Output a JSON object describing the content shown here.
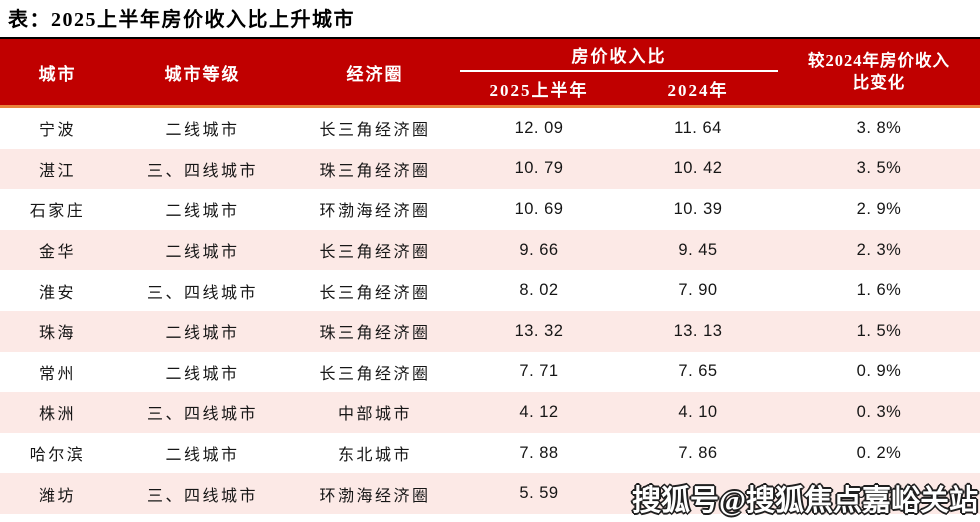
{
  "title": "表：2025上半年房价收入比上升城市",
  "colors": {
    "header_bg": "#C00000",
    "top_rule": "#000000",
    "accent_line": "#E8823B",
    "row_alt_bg": "#FCE9E6",
    "header_text": "#FFFFFF"
  },
  "watermark": "搜狐号@搜狐焦点嘉峪关站",
  "table": {
    "columns": {
      "city": "城市",
      "tier": "城市等级",
      "zone": "经济圈",
      "ratio_group": "房价收入比",
      "h1_2025": "2025上半年",
      "y2024": "2024年",
      "change_line1": "较2024年房价收入",
      "change_line2": "比变化"
    },
    "rows": [
      {
        "city": "宁波",
        "tier": "二线城市",
        "zone": "长三角经济圈",
        "v2025": "12. 09",
        "v2024": "11. 64",
        "change": "3. 8%"
      },
      {
        "city": "湛江",
        "tier": "三、四线城市",
        "zone": "珠三角经济圈",
        "v2025": "10. 79",
        "v2024": "10. 42",
        "change": "3. 5%"
      },
      {
        "city": "石家庄",
        "tier": "二线城市",
        "zone": "环渤海经济圈",
        "v2025": "10. 69",
        "v2024": "10. 39",
        "change": "2. 9%"
      },
      {
        "city": "金华",
        "tier": "二线城市",
        "zone": "长三角经济圈",
        "v2025": "9. 66",
        "v2024": "9. 45",
        "change": "2. 3%"
      },
      {
        "city": "淮安",
        "tier": "三、四线城市",
        "zone": "长三角经济圈",
        "v2025": "8. 02",
        "v2024": "7. 90",
        "change": "1. 6%"
      },
      {
        "city": "珠海",
        "tier": "二线城市",
        "zone": "珠三角经济圈",
        "v2025": "13. 32",
        "v2024": "13. 13",
        "change": "1. 5%"
      },
      {
        "city": "常州",
        "tier": "二线城市",
        "zone": "长三角经济圈",
        "v2025": "7. 71",
        "v2024": "7. 65",
        "change": "0. 9%"
      },
      {
        "city": "株洲",
        "tier": "三、四线城市",
        "zone": "中部城市",
        "v2025": "4. 12",
        "v2024": "4. 10",
        "change": "0. 3%"
      },
      {
        "city": "哈尔滨",
        "tier": "二线城市",
        "zone": "东北城市",
        "v2025": "7. 88",
        "v2024": "7. 86",
        "change": "0. 2%"
      },
      {
        "city": "潍坊",
        "tier": "三、四线城市",
        "zone": "环渤海经济圈",
        "v2025": "5. 59",
        "v2024": "5. 58",
        "change": "0. 2%"
      }
    ]
  },
  "chart_data": {
    "type": "table",
    "title": "表：2025上半年房价收入比上升城市",
    "columns": [
      "城市",
      "城市等级",
      "经济圈",
      "房价收入比 2025上半年",
      "房价收入比 2024年",
      "较2024年房价收入比变化"
    ],
    "rows": [
      [
        "宁波",
        "二线城市",
        "长三角经济圈",
        12.09,
        11.64,
        "3.8%"
      ],
      [
        "湛江",
        "三、四线城市",
        "珠三角经济圈",
        10.79,
        10.42,
        "3.5%"
      ],
      [
        "石家庄",
        "二线城市",
        "环渤海经济圈",
        10.69,
        10.39,
        "2.9%"
      ],
      [
        "金华",
        "二线城市",
        "长三角经济圈",
        9.66,
        9.45,
        "2.3%"
      ],
      [
        "淮安",
        "三、四线城市",
        "长三角经济圈",
        8.02,
        7.9,
        "1.6%"
      ],
      [
        "珠海",
        "二线城市",
        "珠三角经济圈",
        13.32,
        13.13,
        "1.5%"
      ],
      [
        "常州",
        "二线城市",
        "长三角经济圈",
        7.71,
        7.65,
        "0.9%"
      ],
      [
        "株洲",
        "三、四线城市",
        "中部城市",
        4.12,
        4.1,
        "0.3%"
      ],
      [
        "哈尔滨",
        "二线城市",
        "东北城市",
        7.88,
        7.86,
        "0.2%"
      ],
      [
        "潍坊",
        "三、四线城市",
        "环渤海经济圈",
        5.59,
        5.58,
        "0.2%"
      ]
    ]
  }
}
